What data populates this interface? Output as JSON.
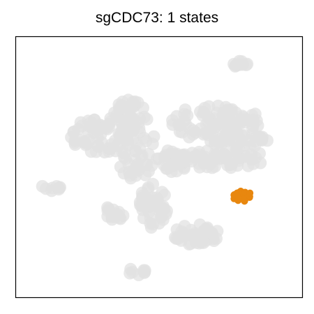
{
  "chart_data": {
    "type": "scatter",
    "title": "sgCDC73: 1 states",
    "xlabel": "",
    "ylabel": "",
    "grid": false,
    "axis_ticks": false,
    "legend": "none",
    "series": [
      {
        "role": "background-cells",
        "color": "#e2e2e2",
        "groups": [
          {
            "label": "main-cluster-left",
            "cx": 0.3,
            "cy": 0.38,
            "rx": 0.11,
            "ry": 0.07,
            "n": 60
          },
          {
            "label": "main-cluster-center",
            "cx": 0.42,
            "cy": 0.43,
            "rx": 0.07,
            "ry": 0.12,
            "n": 55
          },
          {
            "label": "main-cluster-upper",
            "cx": 0.4,
            "cy": 0.3,
            "rx": 0.06,
            "ry": 0.06,
            "n": 35
          },
          {
            "label": "right-cluster-top",
            "cx": 0.7,
            "cy": 0.33,
            "rx": 0.16,
            "ry": 0.07,
            "n": 80
          },
          {
            "label": "right-cluster-band",
            "cx": 0.72,
            "cy": 0.47,
            "rx": 0.17,
            "ry": 0.035,
            "n": 55
          },
          {
            "label": "right-cluster-tail",
            "cx": 0.78,
            "cy": 0.4,
            "rx": 0.1,
            "ry": 0.03,
            "n": 30
          },
          {
            "label": "central-stalk",
            "cx": 0.55,
            "cy": 0.48,
            "rx": 0.06,
            "ry": 0.05,
            "n": 30
          },
          {
            "label": "lower-branch",
            "cx": 0.48,
            "cy": 0.65,
            "rx": 0.05,
            "ry": 0.09,
            "n": 45
          },
          {
            "label": "lower-arm",
            "cx": 0.63,
            "cy": 0.76,
            "rx": 0.09,
            "ry": 0.04,
            "n": 40
          },
          {
            "label": "lower-left-blob",
            "cx": 0.34,
            "cy": 0.68,
            "rx": 0.04,
            "ry": 0.03,
            "n": 14
          },
          {
            "label": "left-small",
            "cx": 0.12,
            "cy": 0.58,
            "rx": 0.035,
            "ry": 0.012,
            "n": 8
          },
          {
            "label": "top-right-small",
            "cx": 0.79,
            "cy": 0.11,
            "rx": 0.04,
            "ry": 0.018,
            "n": 10
          },
          {
            "label": "bottom-small",
            "cx": 0.42,
            "cy": 0.9,
            "rx": 0.035,
            "ry": 0.015,
            "n": 8
          }
        ]
      },
      {
        "role": "highlighted-state",
        "color": "#e8870f",
        "groups": [
          {
            "label": "state-1",
            "cx": 0.79,
            "cy": 0.61,
            "rx": 0.035,
            "ry": 0.022,
            "n": 22
          }
        ]
      }
    ]
  }
}
